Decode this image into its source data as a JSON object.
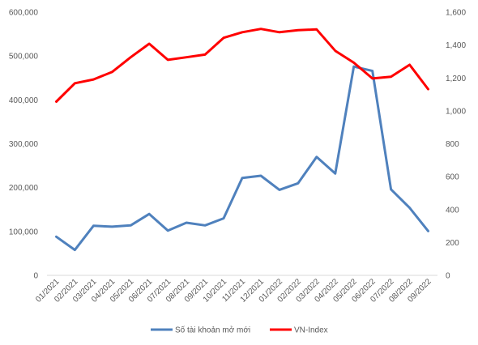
{
  "chart_data": {
    "type": "line",
    "categories": [
      "01/2021",
      "02/2021",
      "03/2021",
      "04/2021",
      "05/2021",
      "06/2021",
      "07/2021",
      "08/2021",
      "09/2021",
      "10/2021",
      "11/2021",
      "12/2021",
      "01/2022",
      "02/2022",
      "03/2022",
      "04/2022",
      "05/2022",
      "06/2022",
      "07/2022",
      "08/2022",
      "09/2022"
    ],
    "y_left": {
      "ylim": [
        0,
        600000
      ],
      "ticks": [
        0,
        100000,
        200000,
        300000,
        400000,
        500000,
        600000
      ],
      "tick_labels": [
        "0",
        "100,000",
        "200,000",
        "300,000",
        "400,000",
        "500,000",
        "600,000"
      ]
    },
    "y_right": {
      "ylim": [
        0,
        1600
      ],
      "ticks": [
        0,
        200,
        400,
        600,
        800,
        1000,
        1200,
        1400,
        1600
      ],
      "tick_labels": [
        "0",
        "200",
        "400",
        "600",
        "800",
        "1,000",
        "1,200",
        "1,400",
        "1,600"
      ]
    },
    "series": [
      {
        "name": "Số tài khoản mở mới",
        "axis": "left",
        "color": "#4f81bd",
        "values": [
          88000,
          58000,
          113000,
          111000,
          114000,
          140000,
          102000,
          120000,
          114000,
          130000,
          222000,
          227000,
          195000,
          210000,
          270000,
          232000,
          476000,
          466000,
          196000,
          154000,
          101000
        ]
      },
      {
        "name": "VN-Index",
        "axis": "right",
        "color": "#ff0000",
        "values": [
          1056,
          1168,
          1191,
          1236,
          1326,
          1408,
          1310,
          1326,
          1342,
          1444,
          1478,
          1498,
          1478,
          1490,
          1495,
          1365,
          1293,
          1197,
          1207,
          1280,
          1132
        ]
      }
    ],
    "grid": false,
    "legend_position": "bottom"
  }
}
